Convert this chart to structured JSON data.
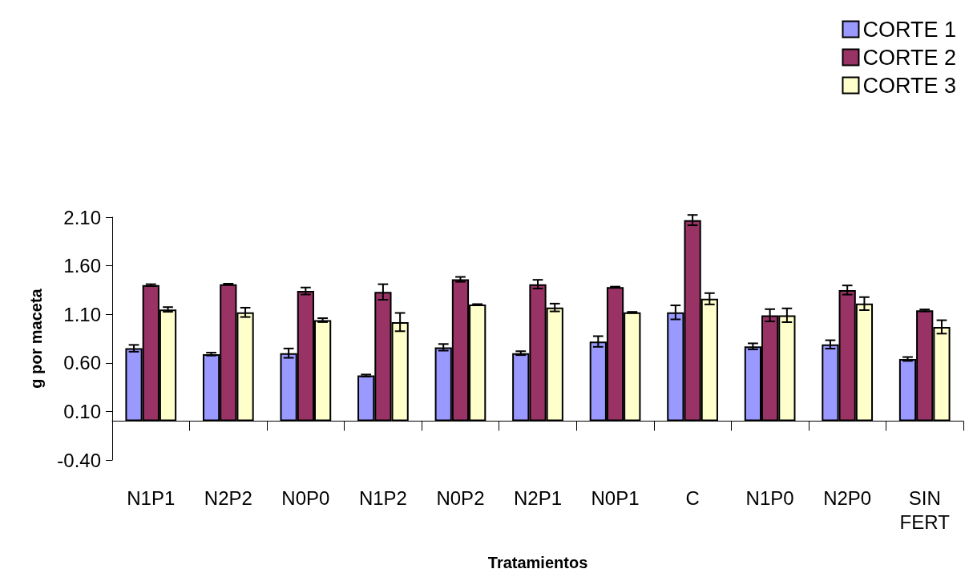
{
  "chart_data": {
    "type": "bar",
    "xlabel": "Tratamientos",
    "ylabel": "g por maceta",
    "categories": [
      "N1P1",
      "N2P2",
      "N0P0",
      "N1P2",
      "N0P2",
      "N2P1",
      "N0P1",
      "C",
      "N1P0",
      "N2P0",
      "SIN FERT"
    ],
    "series": [
      {
        "name": "CORTE 1",
        "color": "#9999ff",
        "values": [
          0.75,
          0.69,
          0.7,
          0.47,
          0.76,
          0.7,
          0.82,
          1.12,
          0.77,
          0.79,
          0.64
        ],
        "errors": [
          0.035,
          0.015,
          0.048,
          0.01,
          0.034,
          0.02,
          0.055,
          0.072,
          0.031,
          0.043,
          0.02
        ]
      },
      {
        "name": "CORTE 2",
        "color": "#993366",
        "values": [
          1.4,
          1.41,
          1.34,
          1.33,
          1.46,
          1.41,
          1.38,
          2.07,
          1.09,
          1.35,
          1.14
        ],
        "errors": [
          0.01,
          0.005,
          0.036,
          0.08,
          0.025,
          0.045,
          0.005,
          0.053,
          0.063,
          0.047,
          0.01
        ]
      },
      {
        "name": "CORTE 3",
        "color": "#ffffcc",
        "values": [
          1.15,
          1.12,
          1.04,
          1.02,
          1.2,
          1.17,
          1.12,
          1.26,
          1.09,
          1.21,
          0.97
        ],
        "errors": [
          0.024,
          0.048,
          0.02,
          0.094,
          0.005,
          0.04,
          0.005,
          0.058,
          0.071,
          0.067,
          0.069
        ]
      }
    ],
    "ylim": [
      -0.4,
      2.1
    ],
    "yticks": [
      {
        "value": -0.4,
        "label": "-0.40"
      },
      {
        "value": 0.1,
        "label": "0.10"
      },
      {
        "value": 0.6,
        "label": "0.60"
      },
      {
        "value": 1.1,
        "label": "1.10"
      },
      {
        "value": 1.6,
        "label": "1.60"
      },
      {
        "value": 2.1,
        "label": "2.10"
      }
    ],
    "grid": false,
    "legend": "top right"
  }
}
